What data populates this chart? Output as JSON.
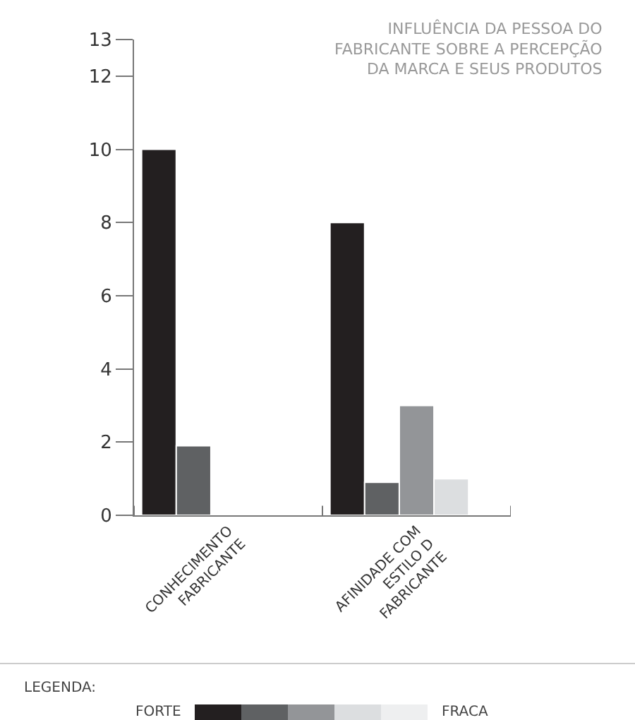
{
  "chart_data": {
    "type": "bar",
    "title": "INFLUÊNCIA DA PESSOA DO\nFABRICANTE SOBRE A PERCEPÇÃO\nDA MARCA E SEUS PRODUTOS",
    "categories": [
      "CONHECIMENTO\nFABRICANTE",
      "AFINIDADE COM\nESTILO D\nFABRICANTE"
    ],
    "series": [
      {
        "color": "#231f20",
        "values": [
          10,
          8
        ]
      },
      {
        "color": "#5f6163",
        "values": [
          1.9,
          0.9
        ]
      },
      {
        "color": "#939598",
        "values": [
          null,
          3
        ]
      },
      {
        "color": "#dcdee0",
        "values": [
          null,
          1
        ]
      },
      {
        "color": "#eeeff0",
        "values": [
          null,
          null
        ]
      }
    ],
    "ylim": [
      0,
      13
    ],
    "yticks": [
      0,
      2,
      4,
      6,
      8,
      10,
      12,
      13
    ],
    "legend": false,
    "annotations": [
      "LEGENDA:",
      "FORTE",
      "FRACA"
    ]
  }
}
